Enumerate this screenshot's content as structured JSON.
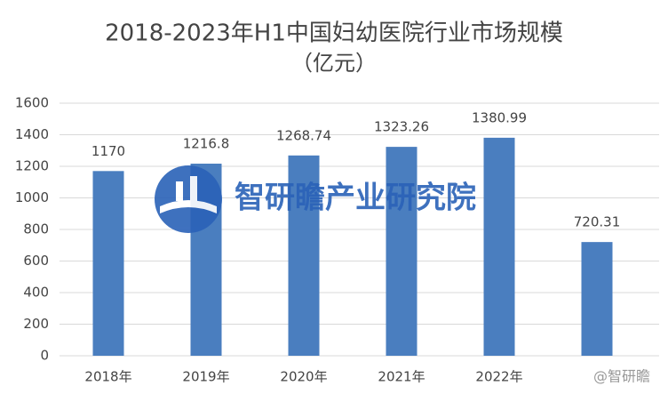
{
  "chart_data": {
    "type": "bar",
    "title": "2018-2023年H1中国妇幼医院行业市场规模",
    "subtitle": "（亿元）",
    "categories": [
      "2018年",
      "2019年",
      "2020年",
      "2021年",
      "2022年",
      null
    ],
    "values": [
      1170,
      1216.8,
      1268.74,
      1323.26,
      1380.99,
      720.31
    ],
    "color": "#4a7ebf",
    "ylim": [
      0,
      1600
    ],
    "yticks": [
      0,
      200,
      400,
      600,
      800,
      1000,
      1200,
      1400,
      1600
    ],
    "grid": true,
    "watermark": "智研瞻产业研究院",
    "credit": "@智研瞻"
  }
}
